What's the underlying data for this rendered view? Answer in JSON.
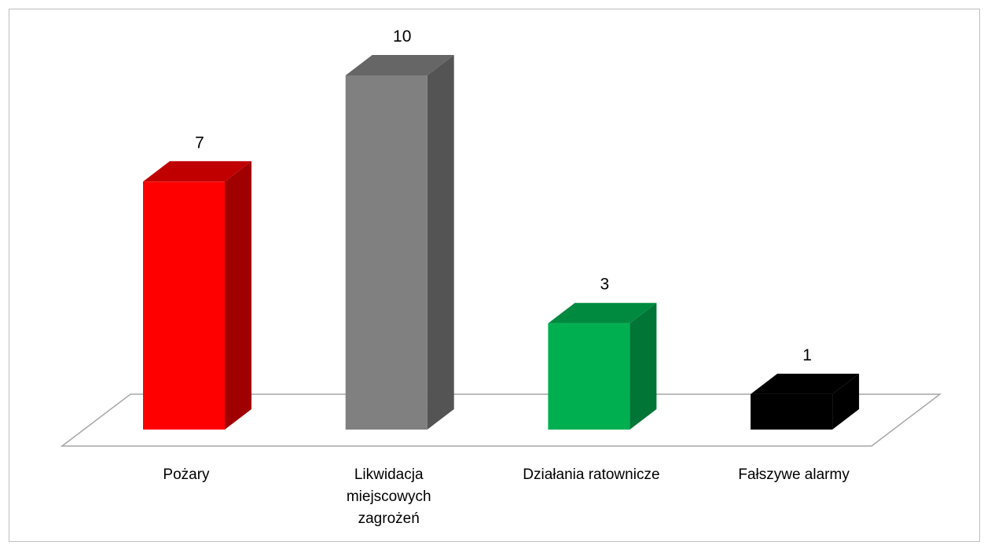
{
  "chart_data": {
    "type": "bar",
    "three_d": true,
    "categories": [
      [
        "Pożary"
      ],
      [
        "Likwidacja",
        "miejscowych",
        "zagrożeń"
      ],
      [
        "Działania ratownicze"
      ],
      [
        "Fałszywe alarmy"
      ]
    ],
    "values": [
      7,
      10,
      3,
      1
    ],
    "colors": [
      {
        "front": "#ff0000",
        "side": "#a00000",
        "top": "#c00000"
      },
      {
        "front": "#808080",
        "side": "#545454",
        "top": "#666666"
      },
      {
        "front": "#00b050",
        "side": "#007535",
        "top": "#008a40"
      },
      {
        "front": "#000000",
        "side": "#000000",
        "top": "#000000"
      }
    ],
    "floor_color": "#a6a6a6",
    "gridlines": false,
    "legend": "none",
    "ylim": [
      0,
      10
    ]
  }
}
